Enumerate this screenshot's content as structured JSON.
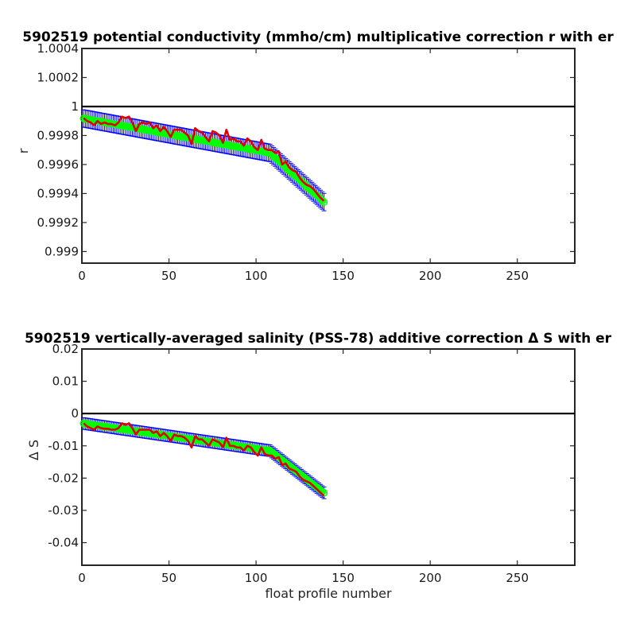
{
  "colors": {
    "axis": "#262626",
    "reference_line": "#000000",
    "error_bars": "#0000ff",
    "markers": "#00ff00",
    "fit_line": "#e00000"
  },
  "chart_data": [
    {
      "type": "line",
      "title": "5902519 potential conductivity (mmho/cm) multiplicative correction r with er",
      "xlabel": "",
      "ylabel": "r",
      "xlim": [
        0,
        283
      ],
      "ylim": [
        0.99892,
        1.0004
      ],
      "xticks": [
        0,
        50,
        100,
        150,
        200,
        250
      ],
      "xticklabels": [
        "0",
        "50",
        "100",
        "150",
        "200",
        "250"
      ],
      "yticks": [
        0.999,
        0.9992,
        0.9994,
        0.9996,
        0.9998,
        1,
        1.0002,
        1.0004
      ],
      "yticklabels": [
        "0.999",
        "0.9992",
        "0.9994",
        "0.9996",
        "0.9998",
        "1",
        "1.0002",
        "1.0004"
      ],
      "grid": false,
      "reference_line": 1,
      "x_range": [
        1,
        139
      ],
      "fit_knots": [
        [
          0,
          0.99992
        ],
        [
          108,
          0.99968
        ],
        [
          140,
          0.99933
        ]
      ],
      "error_halfwidth": 6e-05,
      "series": [
        {
          "style": "red-line",
          "points": [
            [
              1,
              0.99992
            ],
            [
              3,
              0.9999
            ],
            [
              5,
              0.99989
            ],
            [
              7,
              0.99987
            ],
            [
              9,
              0.9999
            ],
            [
              11,
              0.99988
            ],
            [
              13,
              0.99989
            ],
            [
              15,
              0.99988
            ],
            [
              17,
              0.99988
            ],
            [
              19,
              0.99987
            ],
            [
              21,
              0.99989
            ],
            [
              23,
              0.99993
            ],
            [
              25,
              0.99992
            ],
            [
              27,
              0.99993
            ],
            [
              29,
              0.99989
            ],
            [
              31,
              0.99983
            ],
            [
              33,
              0.99988
            ],
            [
              35,
              0.99989
            ],
            [
              37,
              0.99988
            ],
            [
              39,
              0.99989
            ],
            [
              41,
              0.99985
            ],
            [
              43,
              0.99987
            ],
            [
              45,
              0.99983
            ],
            [
              47,
              0.99986
            ],
            [
              49,
              0.99983
            ],
            [
              51,
              0.99979
            ],
            [
              53,
              0.99984
            ],
            [
              55,
              0.99984
            ],
            [
              57,
              0.99984
            ],
            [
              59,
              0.99982
            ],
            [
              61,
              0.9998
            ],
            [
              63,
              0.99974
            ],
            [
              65,
              0.99985
            ],
            [
              67,
              0.99983
            ],
            [
              69,
              0.99982
            ],
            [
              71,
              0.99979
            ],
            [
              73,
              0.99976
            ],
            [
              75,
              0.99983
            ],
            [
              77,
              0.99982
            ],
            [
              79,
              0.9998
            ],
            [
              81,
              0.99975
            ],
            [
              83,
              0.99984
            ],
            [
              85,
              0.99977
            ],
            [
              87,
              0.99978
            ],
            [
              89,
              0.99976
            ],
            [
              91,
              0.99976
            ],
            [
              93,
              0.99973
            ],
            [
              95,
              0.99978
            ],
            [
              97,
              0.99976
            ],
            [
              99,
              0.99972
            ],
            [
              101,
              0.9997
            ],
            [
              103,
              0.99977
            ],
            [
              105,
              0.99971
            ],
            [
              107,
              0.9997
            ],
            [
              109,
              0.9997
            ],
            [
              111,
              0.99968
            ],
            [
              113,
              0.99969
            ],
            [
              115,
              0.9996
            ],
            [
              117,
              0.99962
            ],
            [
              119,
              0.99958
            ],
            [
              121,
              0.99956
            ],
            [
              123,
              0.99955
            ],
            [
              125,
              0.99951
            ],
            [
              127,
              0.99948
            ],
            [
              129,
              0.99946
            ],
            [
              131,
              0.99945
            ],
            [
              133,
              0.99943
            ],
            [
              135,
              0.9994
            ],
            [
              137,
              0.99937
            ],
            [
              139,
              0.99935
            ]
          ]
        }
      ]
    },
    {
      "type": "line",
      "title": "5902519 vertically-averaged salinity (PSS-78) additive correction Δ S with er",
      "xlabel": "float profile number",
      "ylabel": "Δ S",
      "xlim": [
        0,
        283
      ],
      "ylim": [
        -0.047,
        0.02
      ],
      "xticks": [
        0,
        50,
        100,
        150,
        200,
        250
      ],
      "xticklabels": [
        "0",
        "50",
        "100",
        "150",
        "200",
        "250"
      ],
      "yticks": [
        -0.04,
        -0.03,
        -0.02,
        -0.01,
        0,
        0.01,
        0.02
      ],
      "yticklabels": [
        "-0.04",
        "-0.03",
        "-0.02",
        "-0.01",
        "0",
        "0.01",
        "0.02"
      ],
      "grid": false,
      "reference_line": 0,
      "x_range": [
        1,
        139
      ],
      "fit_knots": [
        [
          0,
          -0.003
        ],
        [
          108,
          -0.0115
        ],
        [
          140,
          -0.025
        ]
      ],
      "error_halfwidth": 0.0018,
      "series": [
        {
          "style": "red-line",
          "points": [
            [
              1,
              -0.003
            ],
            [
              3,
              -0.004
            ],
            [
              5,
              -0.0045
            ],
            [
              7,
              -0.005
            ],
            [
              9,
              -0.004
            ],
            [
              11,
              -0.0045
            ],
            [
              13,
              -0.0047
            ],
            [
              15,
              -0.0047
            ],
            [
              17,
              -0.005
            ],
            [
              19,
              -0.005
            ],
            [
              21,
              -0.0045
            ],
            [
              23,
              -0.003
            ],
            [
              25,
              -0.0035
            ],
            [
              27,
              -0.003
            ],
            [
              29,
              -0.0045
            ],
            [
              31,
              -0.0065
            ],
            [
              33,
              -0.005
            ],
            [
              35,
              -0.005
            ],
            [
              37,
              -0.005
            ],
            [
              39,
              -0.005
            ],
            [
              41,
              -0.006
            ],
            [
              43,
              -0.0055
            ],
            [
              45,
              -0.007
            ],
            [
              47,
              -0.006
            ],
            [
              49,
              -0.007
            ],
            [
              51,
              -0.0085
            ],
            [
              53,
              -0.0065
            ],
            [
              55,
              -0.007
            ],
            [
              57,
              -0.007
            ],
            [
              59,
              -0.0075
            ],
            [
              61,
              -0.0085
            ],
            [
              63,
              -0.0105
            ],
            [
              65,
              -0.007
            ],
            [
              67,
              -0.008
            ],
            [
              69,
              -0.008
            ],
            [
              71,
              -0.009
            ],
            [
              73,
              -0.01
            ],
            [
              75,
              -0.008
            ],
            [
              77,
              -0.0085
            ],
            [
              79,
              -0.009
            ],
            [
              81,
              -0.0105
            ],
            [
              83,
              -0.0075
            ],
            [
              85,
              -0.01
            ],
            [
              87,
              -0.01
            ],
            [
              89,
              -0.0105
            ],
            [
              91,
              -0.0105
            ],
            [
              93,
              -0.0115
            ],
            [
              95,
              -0.01
            ],
            [
              97,
              -0.0105
            ],
            [
              99,
              -0.012
            ],
            [
              101,
              -0.013
            ],
            [
              103,
              -0.0105
            ],
            [
              105,
              -0.0125
            ],
            [
              107,
              -0.013
            ],
            [
              109,
              -0.013
            ],
            [
              111,
              -0.014
            ],
            [
              113,
              -0.0135
            ],
            [
              115,
              -0.016
            ],
            [
              117,
              -0.0155
            ],
            [
              119,
              -0.017
            ],
            [
              121,
              -0.0175
            ],
            [
              123,
              -0.018
            ],
            [
              125,
              -0.0195
            ],
            [
              127,
              -0.0205
            ],
            [
              129,
              -0.021
            ],
            [
              131,
              -0.0215
            ],
            [
              133,
              -0.0225
            ],
            [
              135,
              -0.0235
            ],
            [
              137,
              -0.0245
            ],
            [
              139,
              -0.0255
            ]
          ]
        }
      ]
    }
  ]
}
